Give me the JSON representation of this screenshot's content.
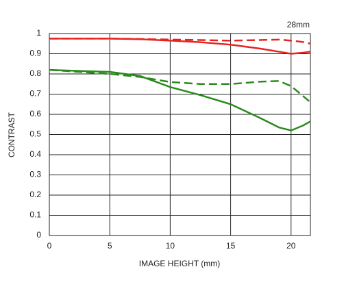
{
  "chart_data": {
    "type": "line",
    "title": "28mm",
    "x_label": "IMAGE HEIGHT (mm)",
    "y_label": "CONTRAST",
    "x": [
      0,
      2.5,
      5,
      7.5,
      10,
      12.5,
      15,
      17.5,
      19,
      20,
      21,
      21.6
    ],
    "series": [
      {
        "color": "#e8231f",
        "dashed": false,
        "values": [
          0.975,
          0.975,
          0.975,
          0.972,
          0.965,
          0.957,
          0.945,
          0.925,
          0.91,
          0.9,
          0.905,
          0.91
        ]
      },
      {
        "color": "#e8231f",
        "dashed": true,
        "values": [
          0.975,
          0.975,
          0.975,
          0.973,
          0.97,
          0.968,
          0.965,
          0.968,
          0.97,
          0.965,
          0.958,
          0.95
        ]
      },
      {
        "color": "#2a8a1c",
        "dashed": false,
        "values": [
          0.82,
          0.815,
          0.81,
          0.79,
          0.735,
          0.695,
          0.65,
          0.58,
          0.535,
          0.52,
          0.545,
          0.565
        ]
      },
      {
        "color": "#2a8a1c",
        "dashed": true,
        "values": [
          0.82,
          0.81,
          0.8,
          0.785,
          0.76,
          0.75,
          0.75,
          0.762,
          0.765,
          0.74,
          0.69,
          0.66
        ]
      }
    ],
    "xlim": [
      0,
      21.6
    ],
    "ylim": [
      0,
      1
    ],
    "xticks": [
      0,
      5,
      10,
      15,
      20
    ],
    "yticks": [
      0,
      0.1,
      0.2,
      0.3,
      0.4,
      0.5,
      0.6,
      0.7,
      0.8,
      0.9,
      1
    ],
    "grid": true
  }
}
